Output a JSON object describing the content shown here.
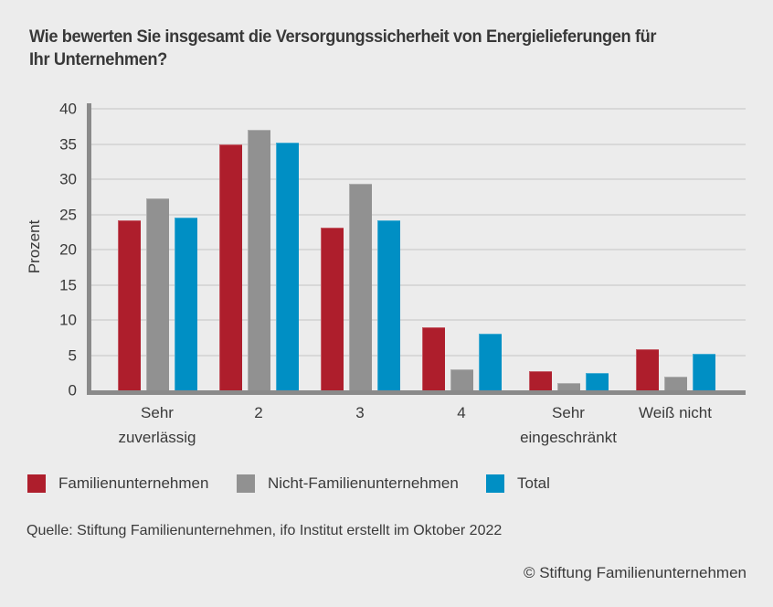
{
  "page": {
    "background": "#ECECEC",
    "text_color": "#3A3A3A"
  },
  "source": "Quelle: Stiftung Familienunternehmen, ifo Institut erstellt im Oktober 2022",
  "footer": "© Stiftung Familienunternehmen",
  "chart_data": {
    "type": "bar",
    "title": "Wie bewerten Sie insgesamt die Versorgungssicherheit von Energielieferungen für\nIhr Unternehmen?",
    "xlabel": "",
    "ylabel": "Prozent",
    "ylim": [
      0,
      40
    ],
    "yticks": [
      0,
      5,
      10,
      15,
      20,
      25,
      30,
      35,
      40
    ],
    "grid": true,
    "legend_position": "bottom",
    "categories": [
      "Sehr\nzuverlässig",
      "2",
      "3",
      "4",
      "Sehr\neingeschränkt",
      "Weiß nicht"
    ],
    "series": [
      {
        "name": "Familienunternehmen",
        "color": "#AE1E2C",
        "values": [
          24.1,
          35.0,
          23.1,
          9.0,
          2.7,
          5.8
        ]
      },
      {
        "name": "Nicht-Familienunternehmen",
        "color": "#919191",
        "values": [
          27.3,
          37.0,
          29.3,
          3.0,
          1.0,
          1.9
        ]
      },
      {
        "name": "Total",
        "color": "#008FC4",
        "values": [
          24.6,
          35.2,
          24.1,
          8.1,
          2.5,
          5.2
        ]
      }
    ],
    "axis_color": "#8A8A8A",
    "grid_color": "#D8D8D8"
  }
}
